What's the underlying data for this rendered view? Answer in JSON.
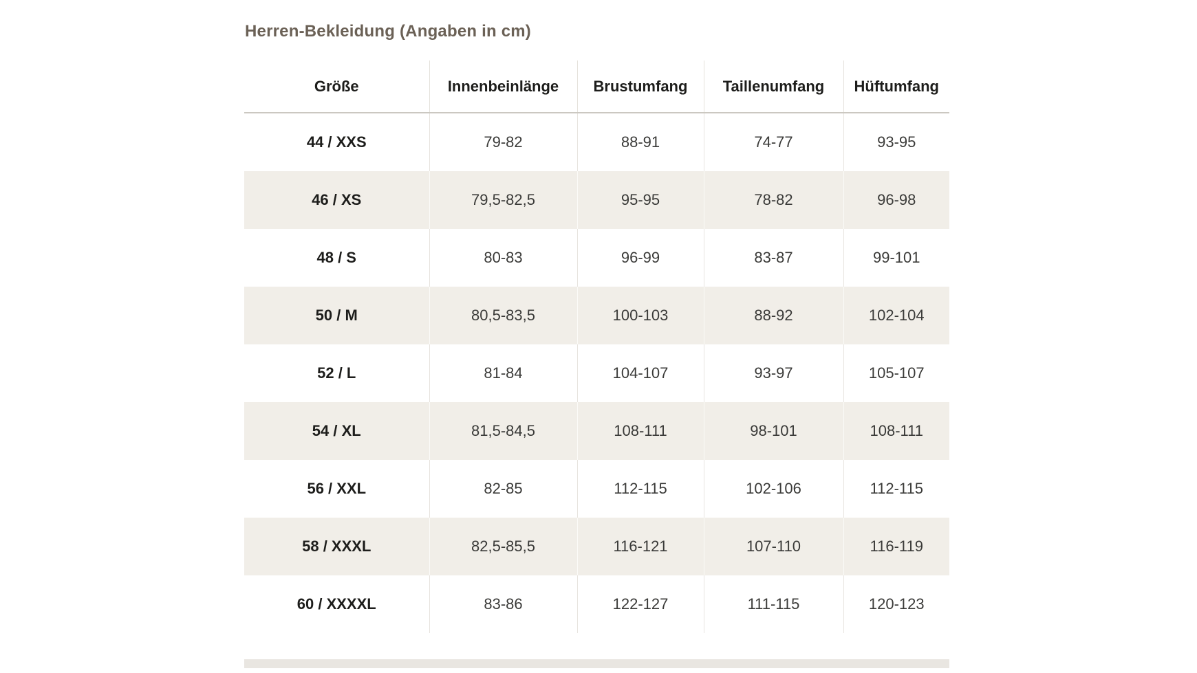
{
  "page": {
    "title": "Herren-Bekleidung (Angaben in cm)"
  },
  "table": {
    "headers": [
      "Größe",
      "Innenbeinlänge",
      "Brustumfang",
      "Taillenumfang",
      "Hüftumfang"
    ],
    "rows": [
      {
        "size": "44 / XXS",
        "values": [
          "79-82",
          "88-91",
          "74-77",
          "93-95"
        ]
      },
      {
        "size": "46 / XS",
        "values": [
          "79,5-82,5",
          "95-95",
          "78-82",
          "96-98"
        ]
      },
      {
        "size": "48 / S",
        "values": [
          "80-83",
          "96-99",
          "83-87",
          "99-101"
        ]
      },
      {
        "size": "50 / M",
        "values": [
          "80,5-83,5",
          "100-103",
          "88-92",
          "102-104"
        ]
      },
      {
        "size": "52 / L",
        "values": [
          "81-84",
          "104-107",
          "93-97",
          "105-107"
        ]
      },
      {
        "size": "54 / XL",
        "values": [
          "81,5-84,5",
          "108-111",
          "98-101",
          "108-111"
        ]
      },
      {
        "size": "56 / XXL",
        "values": [
          "82-85",
          "112-115",
          "102-106",
          "112-115"
        ]
      },
      {
        "size": "58 / XXXL",
        "values": [
          "82,5-85,5",
          "116-121",
          "107-110",
          "116-119"
        ]
      },
      {
        "size": "60 / XXXXL",
        "values": [
          "83-86",
          "122-127",
          "111-115",
          "120-123"
        ]
      }
    ]
  },
  "colors": {
    "title_text": "#6b6156",
    "header_text": "#1d1d1b",
    "body_text": "#3a3a38",
    "shaded_row_background": "#f1eee8",
    "column_separator": "#e7e4df",
    "header_underline": "#cbc8c1",
    "page_background": "#ffffff"
  }
}
